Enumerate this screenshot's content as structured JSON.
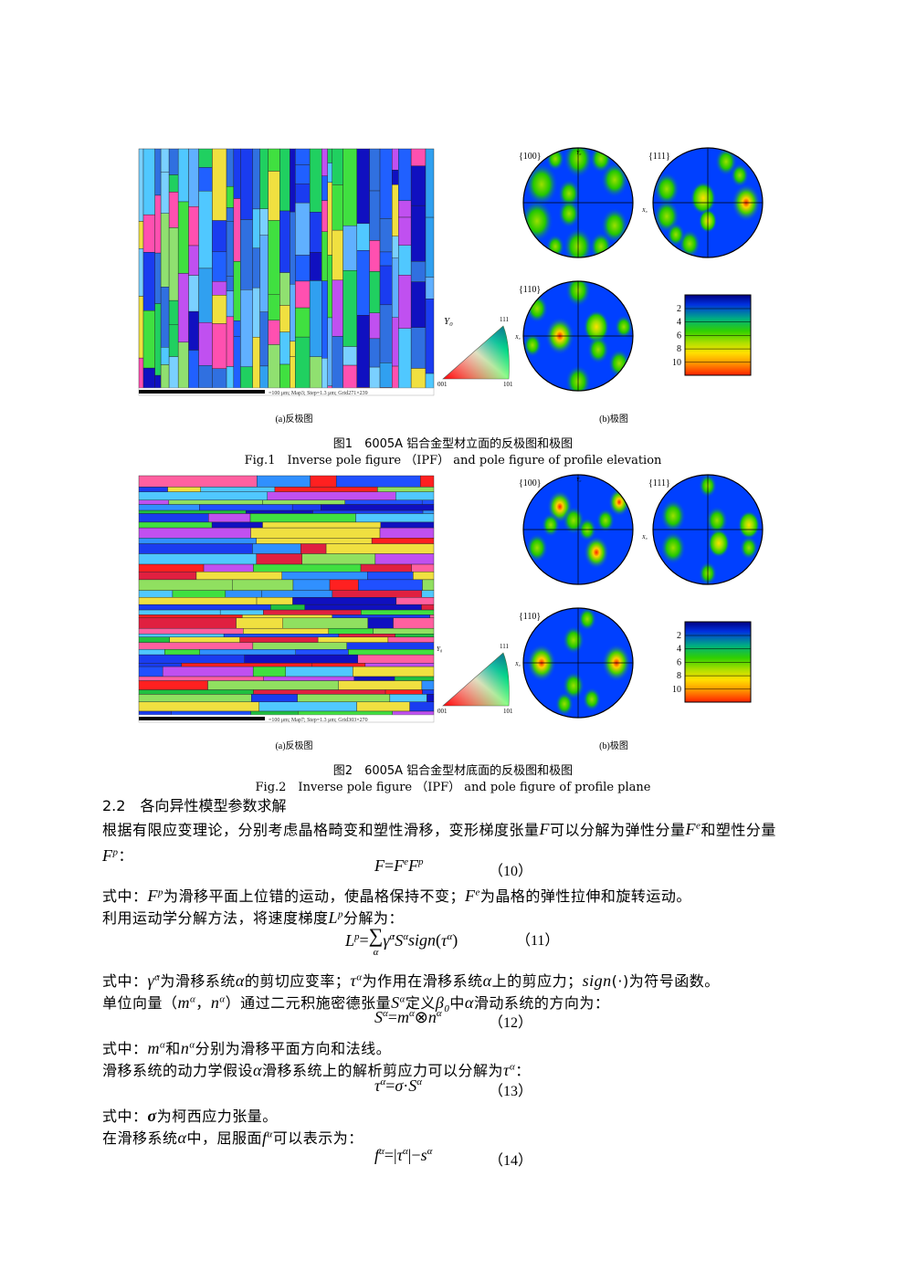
{
  "figures": [
    {
      "map_scale": "=100 μm; Map3; Step=1.3 μm; Grid271×239",
      "sample_axis": "Y₀",
      "ipf_key": {
        "axis": "Y₀",
        "corners": [
          "111",
          "001",
          "101"
        ]
      },
      "pole_figures": [
        {
          "label": "{100}"
        },
        {
          "label": "{111}"
        },
        {
          "label": "{110}"
        }
      ],
      "pole_axes": {
        "y": "Y₀",
        "x": "X₀"
      },
      "colorbar": [
        "2",
        "4",
        "6",
        "8",
        "10"
      ],
      "panel_labels": [
        "(a)反极图",
        "(b)极图"
      ],
      "caption_zh": "图1　6005A 铝合金型材立面的反极图和极图",
      "caption_en": "Fig.1　Inverse pole figure （IPF） and pole figure of profile elevation"
    },
    {
      "map_scale": "=100 μm; Map7; Step=1.3 μm; Grid303×270",
      "sample_axis": "Y₀",
      "ipf_key": {
        "axis": "Y₀",
        "corners": [
          "111",
          "001",
          "101"
        ]
      },
      "pole_figures": [
        {
          "label": "{100}"
        },
        {
          "label": "{111}"
        },
        {
          "label": "{110}"
        }
      ],
      "pole_axes": {
        "y": "Y₀",
        "x": "X₀"
      },
      "colorbar": [
        "2",
        "4",
        "6",
        "8",
        "10"
      ],
      "panel_labels": [
        "(a)反极图",
        "(b)极图"
      ],
      "caption_zh": "图2　6005A 铝合金型材底面的反极图和极图",
      "caption_en": "Fig.2　Inverse pole figure （IPF） and pole figure of profile plane"
    }
  ],
  "section": {
    "number": "2.2",
    "title": "各向异性模型参数求解"
  },
  "body": [
    [
      "根据有限应变理论，分别考虑晶格畸变和塑性滑移，变形梯度张量",
      {
        "m": "F"
      },
      "可以分解为弹性分量",
      {
        "m": "F",
        "sup": "e"
      },
      "和塑性分量",
      {
        "m": "F",
        "sup": "p"
      },
      "："
    ],
    {
      "eq": [
        {
          "m": "F"
        },
        "=",
        {
          "m": "F",
          "sup": "e"
        },
        {
          "m": "F",
          "sup": "p"
        }
      ],
      "num": "（10）"
    },
    [
      "式中：",
      {
        "m": "F",
        "sup": "p"
      },
      "为滑移平面上位错的运动，使晶格保持不变；",
      {
        "m": "F",
        "sup": "e"
      },
      "为晶格的弹性拉伸和旋转运动。"
    ],
    [
      "利用运动学分解方法，将速度梯度",
      {
        "m": "L",
        "sup": "p"
      },
      "分解为："
    ],
    {
      "eq": [
        {
          "m": "L",
          "sup": "p"
        },
        "=",
        {
          "m": "∑",
          "under": "α"
        },
        {
          "m": "γ̇",
          "sup": "α"
        },
        {
          "m": "S",
          "sup": "α"
        },
        {
          "m": "sign"
        },
        "(",
        {
          "m": "τ",
          "sup": "α"
        },
        ")"
      ],
      "num": "（11）"
    },
    [
      "式中：",
      {
        "m": "γ̇",
        "sup": "α"
      },
      "为滑移系统",
      {
        "m": "α"
      },
      "的剪切应变率；",
      {
        "m": "τ",
        "sup": "α"
      },
      "为作用在滑移系统",
      {
        "m": "α"
      },
      "上的剪应力；",
      {
        "m": "sign"
      },
      "(·)",
      "为符号函数。"
    ],
    [
      "单位向量（",
      {
        "m": "m",
        "sup": "α"
      },
      "，",
      {
        "m": "n",
        "sup": "α"
      },
      "）通过二元积施密德张量",
      {
        "m": "S",
        "sup": "α"
      },
      "定义",
      {
        "m": "β",
        "sub": "0"
      },
      "中",
      {
        "m": "α"
      },
      "滑动系统的方向为："
    ],
    {
      "eq": [
        {
          "m": "S",
          "sup": "α"
        },
        "=",
        {
          "m": "m",
          "sup": "α"
        },
        "⊗",
        {
          "m": "n",
          "sup": "α"
        }
      ],
      "num": "（12）"
    },
    [
      "式中：",
      {
        "m": "m",
        "sup": "α"
      },
      "和",
      {
        "m": "n",
        "sup": "α"
      },
      "分别为滑移平面方向和法线。"
    ],
    [
      "滑移系统的动力学假设",
      {
        "m": "α"
      },
      "滑移系统上的解析剪应力可以分解为",
      {
        "m": "τ",
        "sup": "α"
      },
      "："
    ],
    {
      "eq": [
        {
          "m": "τ",
          "sup": "α"
        },
        "=",
        {
          "m": "σ"
        },
        "·",
        {
          "m": "S",
          "sup": "α"
        }
      ],
      "num": "（13）"
    },
    [
      "式中：",
      {
        "b": "σ"
      },
      "为柯西应力张量。"
    ],
    [
      "在滑移系统",
      {
        "m": "α"
      },
      "中，屈服面",
      {
        "m": "f",
        "sup": "α"
      },
      "可以表示为："
    ],
    {
      "eq": [
        {
          "m": "f",
          "sup": "α"
        },
        "=|",
        {
          "m": "τ",
          "sup": "α"
        },
        "|−",
        {
          "m": "s",
          "sup": "α"
        }
      ],
      "num": "（14）"
    }
  ]
}
